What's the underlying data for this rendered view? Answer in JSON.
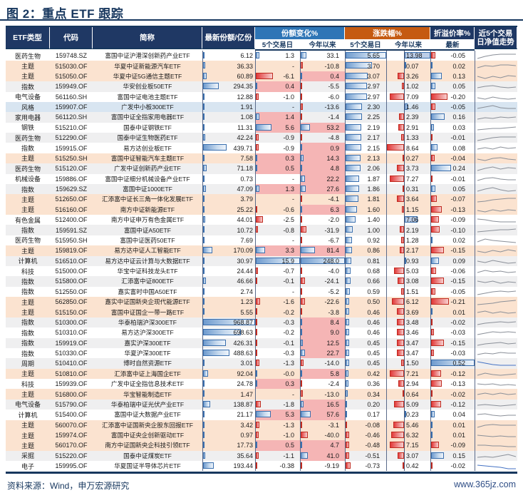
{
  "title": "图 2：重点 ETF 跟踪",
  "header": {
    "col_type": "ETF类型",
    "col_code": "代码",
    "col_name": "简称",
    "col_shares": "最新份额/亿份",
    "grp_share_chg": "份额变化%",
    "grp_pct_chg": "涨跌幅%",
    "grp_premium": "折溢价率%",
    "col_spark": "近5个交易日净值走势",
    "sub_5d": "5个交易日",
    "sub_ytd": "今年以来",
    "sub_latest": "最新"
  },
  "footer": {
    "source": "资料来源：Wind，申万宏源研究",
    "site": "www.365jz.com"
  },
  "palette": {
    "navy": "#1f3864",
    "header_blue": "#2e75b6",
    "header_orange": "#c55a11",
    "row_theme_peach": "#fbe3d0",
    "row_style_blue": "#d8e5f1",
    "row_alt_gray": "#efeff0",
    "cell_pink": "#f5b5b5",
    "bar_blue": "#6f9bce",
    "bar_red": "#e23a3a",
    "spark_gray": "#8a8f98",
    "spark_blue": "#4472c4"
  },
  "scales": {
    "shares_max": 968.87,
    "chg5d_absmax": 15.9,
    "chgytd_absmax": 248.0,
    "pct5d_absmax": 5.65,
    "pctytd_pos_max": 13.98,
    "pctytd_neg_max": 8.64,
    "premium_absmax": 0.52
  },
  "row_fields": [
    "type",
    "code",
    "name",
    "shares",
    "share_chg_5d",
    "share_chg_ytd",
    "pct_chg_5d",
    "pct_chg_ytd",
    "pct_ytd_is_down",
    "premium",
    "spark",
    "spark_is_blue"
  ],
  "rows": [
    [
      "医药生物",
      "159748.SZ",
      "富国中证沪港深创新药产业ETF",
      "6.12",
      "1.3",
      "33.1",
      "5.65",
      "13.98",
      0,
      "-0.05",
      [
        2,
        5,
        7,
        8,
        8,
        8
      ],
      0
    ],
    [
      "主题",
      "515030.OF",
      "华夏中证新能源汽车ETF",
      "36.33",
      "-",
      "-10.8",
      "3.70",
      "0.07",
      0,
      "0.02",
      [
        3,
        6,
        5,
        7,
        7,
        6
      ],
      0
    ],
    [
      "主题",
      "515050.OF",
      "华夏中证5G通信主题ETF",
      "60.89",
      "-6.1",
      "0.4",
      "3.07",
      "3.26",
      1,
      "0.13",
      [
        6,
        3,
        6,
        4,
        7,
        6
      ],
      0
    ],
    [
      "指数",
      "159949.OF",
      "华安创业板50ETF",
      "294.35",
      "0.4",
      "-5.5",
      "2.97",
      "1.02",
      1,
      "0.05",
      [
        4,
        6,
        7,
        5,
        4,
        5
      ],
      0
    ],
    [
      "电气设备",
      "561160.SH",
      "富国中证电池主题ETF",
      "12.88",
      "-1.0",
      "-6.0",
      "2.97",
      "7.09",
      1,
      "-0.20",
      [
        5,
        3,
        6,
        4,
        3,
        4
      ],
      0
    ],
    [
      "风格",
      "159907.OF",
      "广发中小板300ETF",
      "1.91",
      "-",
      "-13.6",
      "2.30",
      "1.46",
      0,
      "-0.05",
      [
        4,
        6,
        8,
        5,
        4,
        4
      ],
      0
    ],
    [
      "家用电器",
      "561120.SH",
      "富国中证全指家用电器ETF",
      "1.08",
      "1.4",
      "-1.4",
      "2.25",
      "2.39",
      1,
      "0.16",
      [
        3,
        5,
        4,
        6,
        5,
        6
      ],
      0
    ],
    [
      "钢铁",
      "515210.OF",
      "国泰中证钢铁ETF",
      "11.31",
      "5.6",
      "53.2",
      "2.19",
      "2.91",
      1,
      "0.03",
      [
        3,
        4,
        5,
        5,
        6,
        7
      ],
      0
    ],
    [
      "医药生物",
      "512290.OF",
      "国泰中证生物医药ETF",
      "42.24",
      "-0.9",
      "-4.8",
      "2.17",
      "1.33",
      1,
      "-0.01",
      [
        2,
        4,
        6,
        7,
        7,
        7
      ],
      0
    ],
    [
      "指数",
      "159915.OF",
      "易方达创业板ETF",
      "439.71",
      "-0.9",
      "0.9",
      "2.15",
      "8.64",
      1,
      "0.08",
      [
        4,
        6,
        4,
        7,
        5,
        6
      ],
      0
    ],
    [
      "主题",
      "515250.SH",
      "富国中证智能汽车主题ETF",
      "7.58",
      "0.3",
      "14.3",
      "2.13",
      "0.27",
      1,
      "-0.04",
      [
        5,
        3,
        6,
        7,
        5,
        4
      ],
      0
    ],
    [
      "医药生物",
      "515120.OF",
      "广发中证创新药产业ETF",
      "71.18",
      "0.5",
      "4.8",
      "2.06",
      "3.73",
      1,
      "0.24",
      [
        3,
        6,
        8,
        5,
        7,
        6
      ],
      0
    ],
    [
      "机械设备",
      "159886.OF",
      "富国中证细分机械设备产业ETF",
      "0.73",
      "-",
      "22.2",
      "1.87",
      "7.27",
      1,
      "-0.01",
      [
        4,
        7,
        8,
        6,
        5,
        5
      ],
      0
    ],
    [
      "指数",
      "159629.SZ",
      "富国中证1000ETF",
      "47.09",
      "1.3",
      "27.6",
      "1.86",
      "0.31",
      1,
      "0.05",
      [
        3,
        6,
        8,
        5,
        3,
        4
      ],
      0
    ],
    [
      "主题",
      "512650.OF",
      "汇添富中证长三角一体化发展ETF",
      "3.79",
      "-",
      "-4.1",
      "1.81",
      "3.64",
      1,
      "-0.07",
      [
        2,
        3,
        5,
        6,
        7,
        7
      ],
      0
    ],
    [
      "主题",
      "516160.OF",
      "南方中证新能源ETF",
      "25.22",
      "-0.6",
      "6.3",
      "1.60",
      "1.15",
      1,
      "-0.13",
      [
        5,
        3,
        6,
        4,
        6,
        5
      ],
      0
    ],
    [
      "有色金属",
      "512400.OF",
      "南方中证申万有色金属ETF",
      "44.01",
      "-2.5",
      "-2.0",
      "1.40",
      "7.06",
      0,
      "-0.09",
      [
        7,
        6,
        4,
        3,
        3,
        3
      ],
      0
    ],
    [
      "指数",
      "159591.SZ",
      "富国中证A50ETF",
      "10.72",
      "-0.8",
      "-31.9",
      "1.00",
      "2.19",
      1,
      "-0.10",
      [
        3,
        4,
        5,
        6,
        6,
        7
      ],
      0
    ],
    [
      "医药生物",
      "515950.SH",
      "富国中证医药50ETF",
      "7.69",
      "-",
      "-6.7",
      "0.92",
      "1.28",
      1,
      "0.02",
      [
        4,
        8,
        6,
        5,
        4,
        3
      ],
      0
    ],
    [
      "主题",
      "159819.OF",
      "易方达中证人工智能ETF",
      "170.09",
      "3.3",
      "81.4",
      "0.86",
      "2.17",
      1,
      "-0.15",
      [
        5,
        3,
        6,
        4,
        7,
        5
      ],
      0
    ],
    [
      "计算机",
      "516510.OF",
      "易方达中证云计算与大数据ETF",
      "30.97",
      "15.9",
      "248.0",
      "0.81",
      "0.93",
      0,
      "0.09",
      [
        6,
        4,
        7,
        5,
        3,
        4
      ],
      0
    ],
    [
      "科技",
      "515000.OF",
      "华宝中证科技龙头ETF",
      "24.44",
      "-0.7",
      "-4.0",
      "0.68",
      "5.03",
      1,
      "-0.06",
      [
        4,
        7,
        5,
        6,
        4,
        5
      ],
      0
    ],
    [
      "指数",
      "515800.OF",
      "汇添富中证800ETF",
      "46.66",
      "-0.1",
      "-24.1",
      "0.66",
      "3.08",
      1,
      "-0.15",
      [
        6,
        4,
        6,
        3,
        5,
        4
      ],
      0
    ],
    [
      "指数",
      "512550.OF",
      "嘉实富时中国A50ETF",
      "2.74",
      "-",
      "-5.2",
      "0.59",
      "1.51",
      1,
      "-0.05",
      [
        2,
        4,
        6,
        7,
        6,
        7
      ],
      0
    ],
    [
      "主题",
      "562850.OF",
      "嘉实中证国新央企现代能源ETF",
      "1.23",
      "-1.6",
      "-22.6",
      "0.50",
      "6.12",
      1,
      "-0.21",
      [
        2,
        3,
        4,
        6,
        7,
        8
      ],
      0
    ],
    [
      "主题",
      "515150.OF",
      "富国中证国企一带一路ETF",
      "5.55",
      "-0.2",
      "-3.8",
      "0.46",
      "3.69",
      1,
      "0.01",
      [
        5,
        7,
        4,
        6,
        4,
        5
      ],
      0
    ],
    [
      "指数",
      "510300.OF",
      "华泰柏瑞沪深300ETF",
      "968.87",
      "-0.3",
      "8.4",
      "0.46",
      "3.48",
      1,
      "-0.02",
      [
        3,
        5,
        6,
        7,
        6,
        7
      ],
      0
    ],
    [
      "指数",
      "510310.OF",
      "易方达沪深300ETF",
      "698.63",
      "-0.2",
      "9.0",
      "0.46",
      "3.46",
      1,
      "-0.03",
      [
        3,
        5,
        7,
        6,
        7,
        6
      ],
      0
    ],
    [
      "指数",
      "159919.OF",
      "嘉实沪深300ETF",
      "426.31",
      "-0.1",
      "12.5",
      "0.45",
      "3.47",
      1,
      "-0.15",
      [
        3,
        5,
        6,
        7,
        5,
        6
      ],
      0
    ],
    [
      "指数",
      "510330.OF",
      "华夏沪深300ETF",
      "488.63",
      "-0.3",
      "22.7",
      "0.45",
      "3.47",
      1,
      "-0.03",
      [
        4,
        6,
        5,
        7,
        6,
        6
      ],
      0
    ],
    [
      "周期",
      "510410.OF",
      "博时自然资源ETF",
      "3.01",
      "-1.3",
      "-14.0",
      "0.45",
      "1.50",
      1,
      "0.52",
      [
        8,
        6,
        4,
        3,
        3,
        3
      ],
      1
    ],
    [
      "主题",
      "510810.OF",
      "汇添富中证上海国企ETF",
      "92.04",
      "-0.0",
      "5.8",
      "0.42",
      "7.21",
      1,
      "-0.12",
      [
        4,
        7,
        5,
        4,
        5,
        6
      ],
      0
    ],
    [
      "科技",
      "159939.OF",
      "广发中证全指信息技术ETF",
      "24.78",
      "0.3",
      "-2.4",
      "0.36",
      "2.94",
      1,
      "-0.13",
      [
        6,
        5,
        6,
        4,
        5,
        4
      ],
      0
    ],
    [
      "主题",
      "516800.OF",
      "华宝智能制造ETF",
      "1.47",
      "-",
      "-13.0",
      "0.34",
      "0.64",
      1,
      "-0.02",
      [
        5,
        7,
        5,
        7,
        5,
        6
      ],
      0
    ],
    [
      "电气设备",
      "515790.OF",
      "华泰柏瑞中证光伏产业ETF",
      "138.87",
      "-1.8",
      "16.5",
      "0.20",
      "5.09",
      1,
      "-0.12",
      [
        5,
        6,
        5,
        4,
        5,
        6
      ],
      0
    ],
    [
      "计算机",
      "515400.OF",
      "富国中证大数据产业ETF",
      "21.17",
      "5.3",
      "57.6",
      "0.17",
      "0.23",
      0,
      "0.04",
      [
        6,
        7,
        5,
        4,
        5,
        5
      ],
      0
    ],
    [
      "主题",
      "560070.OF",
      "汇添富中证国新央企股东回报ETF",
      "3.42",
      "-1.3",
      "-3.1",
      "-0.08",
      "5.46",
      1,
      "0.01",
      [
        3,
        6,
        7,
        6,
        6,
        6
      ],
      0
    ],
    [
      "主题",
      "159974.OF",
      "富国中证央企创新驱动ETF",
      "0.97",
      "-1.0",
      "-40.0",
      "-0.46",
      "6.32",
      1,
      "0.01",
      [
        6,
        5,
        4,
        5,
        4,
        4
      ],
      0
    ],
    [
      "主题",
      "560170.OF",
      "南方中证国新央企科技引领ETF",
      "17.73",
      "0.5",
      "4.7",
      "-0.48",
      "7.15",
      1,
      "-0.09",
      [
        6,
        6,
        5,
        5,
        4,
        4
      ],
      0
    ],
    [
      "采掘",
      "515220.OF",
      "国泰中证煤炭ETF",
      "35.64",
      "-1.1",
      "41.0",
      "-0.51",
      "3.07",
      1,
      "0.15",
      [
        4,
        5,
        4,
        6,
        8,
        5
      ],
      0
    ],
    [
      "电子",
      "159995.OF",
      "华夏国证半导体芯片ETF",
      "193.44",
      "-0.38",
      "-9.19",
      "-0.73",
      "0.42",
      1,
      "-0.02",
      [
        7,
        6,
        5,
        4,
        2,
        2
      ],
      1
    ]
  ]
}
